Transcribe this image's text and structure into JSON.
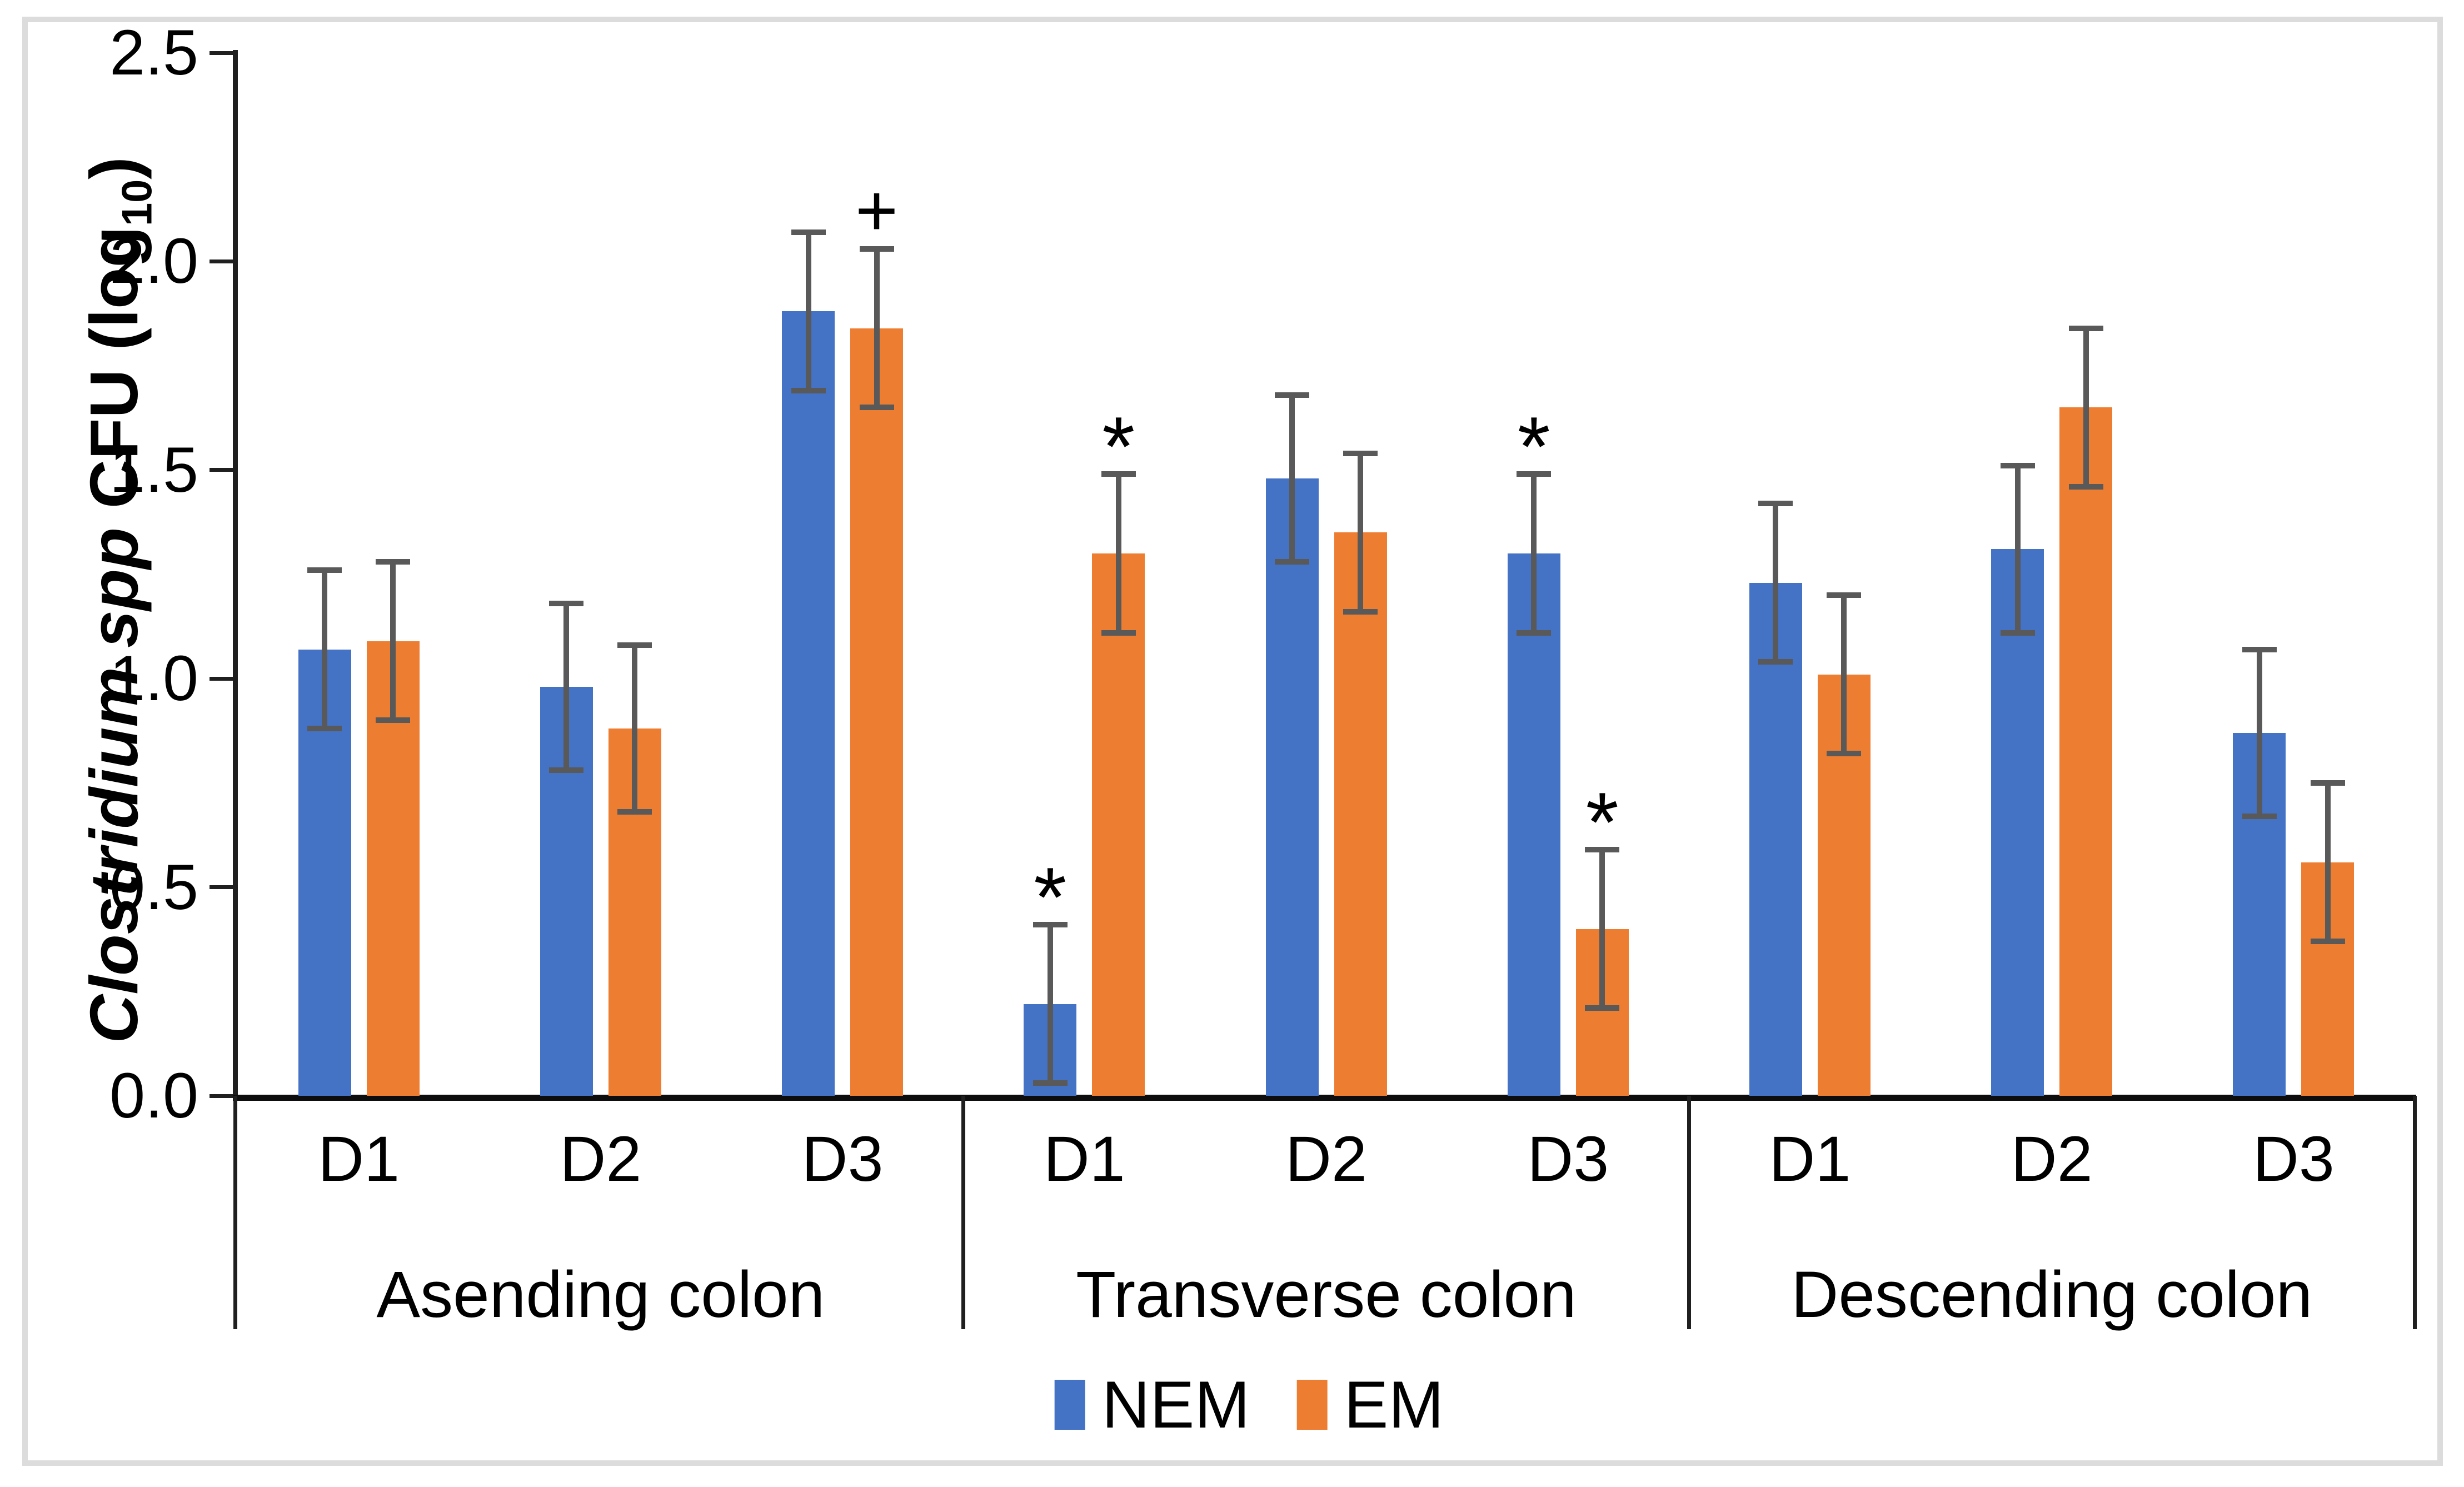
{
  "chart_data": {
    "type": "bar",
    "title": "",
    "ylabel": {
      "italic_part": "Clostridium spp",
      "normal_part": "CFU (log",
      "subscript": "10",
      "close_part": ")"
    },
    "ylim": [
      0,
      2.5
    ],
    "ytick_step": 0.5,
    "yticks": [
      "0.0",
      "0.5",
      "1.0",
      "1.5",
      "2.0",
      "2.5"
    ],
    "grid": "off",
    "legend_position": "bottom",
    "series": [
      {
        "name": "NEM",
        "color": "#4472C4"
      },
      {
        "name": "EM",
        "color": "#ED7D31"
      }
    ],
    "error_bar_color": "#595959",
    "groups": [
      {
        "label": "Asending colon",
        "categories": [
          "D1",
          "D2",
          "D3"
        ],
        "series": [
          {
            "name": "NEM",
            "values": [
              1.07,
              0.98,
              1.88
            ],
            "errors": [
              0.19,
              0.2,
              0.19
            ],
            "annotations": [
              "",
              "",
              ""
            ]
          },
          {
            "name": "EM",
            "values": [
              1.09,
              0.88,
              1.84
            ],
            "errors": [
              0.19,
              0.2,
              0.19
            ],
            "annotations": [
              "",
              "",
              "+"
            ]
          }
        ]
      },
      {
        "label": "Transverse colon",
        "categories": [
          "D1",
          "D2",
          "D3"
        ],
        "series": [
          {
            "name": "NEM",
            "values": [
              0.22,
              1.48,
              1.3
            ],
            "errors": [
              0.19,
              0.2,
              0.19
            ],
            "annotations": [
              "*",
              "",
              "*"
            ]
          },
          {
            "name": "EM",
            "values": [
              1.3,
              1.35,
              0.4
            ],
            "errors": [
              0.19,
              0.19,
              0.19
            ],
            "annotations": [
              "*",
              "",
              "*"
            ]
          }
        ]
      },
      {
        "label": "Descending colon",
        "categories": [
          "D1",
          "D2",
          "D3"
        ],
        "series": [
          {
            "name": "NEM",
            "values": [
              1.23,
              1.31,
              0.87
            ],
            "errors": [
              0.19,
              0.2,
              0.2
            ],
            "annotations": [
              "",
              "",
              ""
            ]
          },
          {
            "name": "EM",
            "values": [
              1.01,
              1.65,
              0.56
            ],
            "errors": [
              0.19,
              0.19,
              0.19
            ],
            "annotations": [
              "",
              "",
              ""
            ]
          }
        ]
      }
    ]
  },
  "colors": {
    "nem_bar": "#4472C4",
    "em_bar": "#ED7D31",
    "error_bar": "#595959",
    "axis": "#1f1f1f",
    "figure_border": "#dcdcdc",
    "background": "#ffffff"
  }
}
